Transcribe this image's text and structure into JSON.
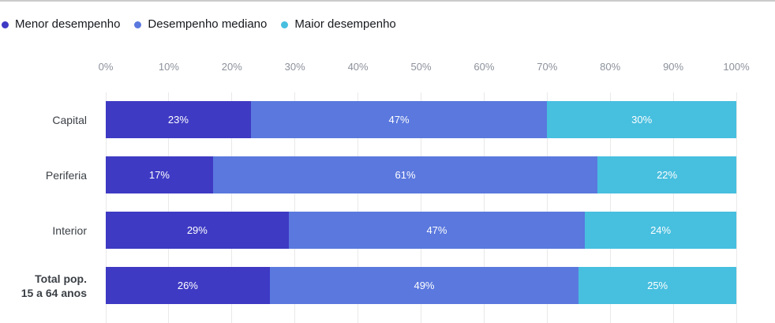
{
  "chart_data": {
    "type": "bar",
    "orientation": "horizontal",
    "stacked": true,
    "categories": [
      {
        "lines": [
          "Capital"
        ],
        "bold": false
      },
      {
        "lines": [
          "Periferia"
        ],
        "bold": false
      },
      {
        "lines": [
          "Interior"
        ],
        "bold": false
      },
      {
        "lines": [
          "Total pop.",
          "15 a 64 anos"
        ],
        "bold": true
      }
    ],
    "series": [
      {
        "name": "Menor desempenho",
        "color": "#3E3AC4",
        "values": [
          23,
          17,
          29,
          26
        ]
      },
      {
        "name": "Desempenho mediano",
        "color": "#5A78DE",
        "values": [
          47,
          61,
          47,
          49
        ]
      },
      {
        "name": "Maior desempenho",
        "color": "#47BFDF",
        "values": [
          30,
          22,
          24,
          25
        ]
      }
    ],
    "value_suffix": "%",
    "x_ticks": [
      "0%",
      "10%",
      "20%",
      "30%",
      "40%",
      "50%",
      "60%",
      "70%",
      "80%",
      "90%",
      "100%"
    ],
    "xlim": [
      0,
      100
    ],
    "grid": "vertical",
    "legend_position": "top-left"
  },
  "colors": {
    "grid_line": "#E9E9E9",
    "axis_text": "#8C919B",
    "category_text": "#3B4046",
    "legend_text": "#16181D",
    "bar_value_text": "#FFFFFF",
    "top_border": "#CBCBCB",
    "background": "#FFFFFF"
  }
}
